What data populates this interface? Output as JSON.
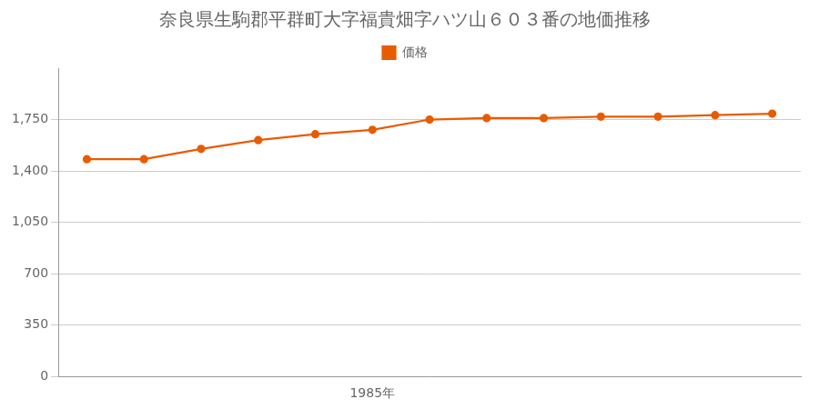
{
  "chart_data": {
    "type": "line",
    "title": "奈良県生駒郡平群町大字福貴畑字ハツ山６０３番の地価推移",
    "x": [
      1980,
      1981,
      1982,
      1983,
      1984,
      1985,
      1986,
      1987,
      1988,
      1989,
      1990,
      1991,
      1992
    ],
    "series": [
      {
        "name": "価格",
        "color": "#e85c00",
        "values": [
          1480,
          1480,
          1550,
          1610,
          1650,
          1680,
          1750,
          1760,
          1760,
          1770,
          1770,
          1780,
          1790
        ]
      }
    ],
    "xlim": [
      1979.5,
      1992.5
    ],
    "xticks": [
      {
        "value": 1985,
        "label": "1985年"
      }
    ],
    "ylim": [
      0,
      2100
    ],
    "yticks": [
      0,
      350,
      700,
      {
        "value": 1050,
        "label": "1,050"
      },
      {
        "value": 1400,
        "label": "1,400"
      },
      {
        "value": 1750,
        "label": "1,750"
      }
    ],
    "grid": "y",
    "legend": "top",
    "marker": "circle"
  }
}
